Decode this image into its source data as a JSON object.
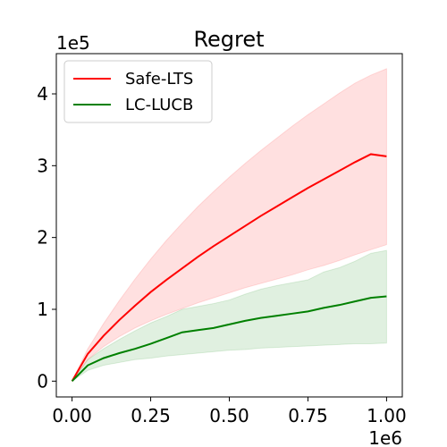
{
  "chart_data": {
    "type": "line",
    "title": "Regret",
    "xlabel": "",
    "ylabel": "",
    "x_multiplier_label": "1e6",
    "y_multiplier_label": "1e5",
    "xlim": [
      -0.05,
      1.05
    ],
    "ylim": [
      -0.22,
      4.56
    ],
    "x_ticks": [
      0.0,
      0.25,
      0.5,
      0.75,
      1.0
    ],
    "x_tick_labels": [
      "0.00",
      "0.25",
      "0.50",
      "0.75",
      "1.00"
    ],
    "y_ticks": [
      0,
      1,
      2,
      3,
      4
    ],
    "y_tick_labels": [
      "0",
      "1",
      "2",
      "3",
      "4"
    ],
    "grid": false,
    "legend_position": "upper-left",
    "series": [
      {
        "name": "Safe-LTS",
        "color": "#ff0000",
        "fill_color": "#ff0000",
        "x": [
          0.0,
          0.05,
          0.1,
          0.15,
          0.2,
          0.25,
          0.3,
          0.35,
          0.4,
          0.45,
          0.5,
          0.55,
          0.6,
          0.65,
          0.7,
          0.75,
          0.8,
          0.85,
          0.9,
          0.95,
          1.0
        ],
        "values": [
          0.0,
          0.38,
          0.63,
          0.85,
          1.05,
          1.24,
          1.41,
          1.57,
          1.73,
          1.88,
          2.02,
          2.16,
          2.3,
          2.43,
          2.56,
          2.69,
          2.81,
          2.93,
          3.05,
          3.16,
          3.13
        ],
        "upper": [
          0.0,
          0.45,
          0.8,
          1.12,
          1.42,
          1.7,
          1.96,
          2.2,
          2.43,
          2.64,
          2.84,
          3.03,
          3.21,
          3.38,
          3.55,
          3.71,
          3.86,
          4.01,
          4.15,
          4.26,
          4.35
        ],
        "lower": [
          0.0,
          0.3,
          0.48,
          0.62,
          0.74,
          0.84,
          0.93,
          1.01,
          1.09,
          1.16,
          1.23,
          1.3,
          1.36,
          1.42,
          1.48,
          1.55,
          1.61,
          1.68,
          1.76,
          1.83,
          1.9
        ]
      },
      {
        "name": "LC-LUCB",
        "color": "#008000",
        "fill_color": "#008000",
        "x": [
          0.0,
          0.05,
          0.1,
          0.15,
          0.2,
          0.25,
          0.3,
          0.35,
          0.4,
          0.45,
          0.5,
          0.55,
          0.6,
          0.65,
          0.7,
          0.75,
          0.8,
          0.85,
          0.9,
          0.95,
          1.0
        ],
        "values": [
          0.0,
          0.22,
          0.32,
          0.39,
          0.45,
          0.52,
          0.6,
          0.68,
          0.71,
          0.74,
          0.79,
          0.84,
          0.88,
          0.91,
          0.94,
          0.97,
          1.02,
          1.06,
          1.11,
          1.16,
          1.18
        ],
        "upper": [
          0.0,
          0.3,
          0.45,
          0.58,
          0.7,
          0.81,
          0.9,
          1.0,
          1.04,
          1.08,
          1.13,
          1.21,
          1.28,
          1.33,
          1.37,
          1.41,
          1.52,
          1.58,
          1.67,
          1.78,
          1.82
        ],
        "lower": [
          0.0,
          0.15,
          0.22,
          0.26,
          0.3,
          0.32,
          0.35,
          0.37,
          0.39,
          0.41,
          0.43,
          0.44,
          0.46,
          0.47,
          0.48,
          0.49,
          0.5,
          0.51,
          0.52,
          0.52,
          0.53
        ]
      }
    ]
  }
}
